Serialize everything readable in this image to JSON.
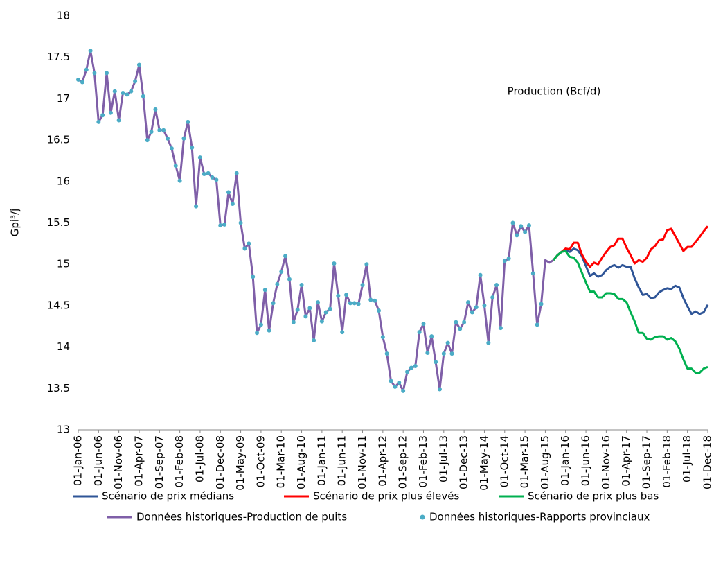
{
  "chart_data": {
    "type": "line",
    "y_label": "Gpi³/j",
    "annotation": "Production (Bcf/d)",
    "ylim": [
      13,
      18
    ],
    "yticks": [
      13,
      13.5,
      14,
      14.5,
      15,
      15.5,
      16,
      16.5,
      17,
      17.5,
      18
    ],
    "grid": false,
    "legend": "bottom",
    "categories": [
      "01-Jan-06",
      null,
      null,
      null,
      null,
      "01-Jun-06",
      null,
      null,
      null,
      null,
      "01-Nov-06",
      null,
      null,
      null,
      null,
      "01-Apr-07",
      null,
      null,
      null,
      null,
      "01-Sep-07",
      null,
      null,
      null,
      null,
      "01-Feb-08",
      null,
      null,
      null,
      null,
      "01-Jul-08",
      null,
      null,
      null,
      null,
      "01-Dec-08",
      null,
      null,
      null,
      null,
      "01-May-09",
      null,
      null,
      null,
      null,
      "01-Oct-09",
      null,
      null,
      null,
      null,
      "01-Mar-10",
      null,
      null,
      null,
      null,
      "01-Aug-10",
      null,
      null,
      null,
      null,
      "01-Jan-11",
      null,
      null,
      null,
      null,
      "01-Jun-11",
      null,
      null,
      null,
      null,
      "01-Nov-11",
      null,
      null,
      null,
      null,
      "01-Apr-12",
      null,
      null,
      null,
      null,
      "01-Sep-12",
      null,
      null,
      null,
      null,
      "01-Feb-13",
      null,
      null,
      null,
      null,
      "01-Jul-13",
      null,
      null,
      null,
      null,
      "01-Dec-13",
      null,
      null,
      null,
      null,
      "01-May-14",
      null,
      null,
      null,
      null,
      "01-Oct-14",
      null,
      null,
      null,
      null,
      "01-Mar-15",
      null,
      null,
      null,
      null,
      "01-Aug-15",
      null,
      null,
      null,
      null,
      "01-Jan-16",
      null,
      null,
      null,
      null,
      "01-Jun-16",
      null,
      null,
      null,
      null,
      "01-Nov-16",
      null,
      null,
      null,
      null,
      "01-Apr-17",
      null,
      null,
      null,
      null,
      "01-Sep-17",
      null,
      null,
      null,
      null,
      "01-Feb-18",
      null,
      null,
      null,
      null,
      "01-Jul-18",
      null,
      null,
      null,
      null,
      "01-Dec-18"
    ],
    "series": [
      {
        "name": "Scénario de prix médians",
        "color": "#2f5597",
        "mode": "line",
        "values": [
          null,
          null,
          null,
          null,
          null,
          null,
          null,
          null,
          null,
          null,
          null,
          null,
          null,
          null,
          null,
          null,
          null,
          null,
          null,
          null,
          null,
          null,
          null,
          null,
          null,
          null,
          null,
          null,
          null,
          null,
          null,
          null,
          null,
          null,
          null,
          null,
          null,
          null,
          null,
          null,
          null,
          null,
          null,
          null,
          null,
          null,
          null,
          null,
          null,
          null,
          null,
          null,
          null,
          null,
          null,
          null,
          null,
          null,
          null,
          null,
          null,
          null,
          null,
          null,
          null,
          null,
          null,
          null,
          null,
          null,
          null,
          null,
          null,
          null,
          null,
          null,
          null,
          null,
          null,
          null,
          null,
          null,
          null,
          null,
          null,
          null,
          null,
          null,
          null,
          null,
          null,
          null,
          null,
          null,
          null,
          null,
          null,
          null,
          null,
          null,
          null,
          null,
          null,
          null,
          null,
          null,
          null,
          null,
          null,
          null,
          null,
          null,
          null,
          null,
          null,
          null,
          null,
          15.05,
          15.11,
          15.15,
          15.17,
          15.15,
          15.19,
          15.17,
          15.1,
          14.98,
          14.86,
          14.89,
          14.85,
          14.87,
          14.93,
          14.97,
          14.99,
          14.96,
          14.99,
          14.97,
          14.97,
          14.83,
          14.72,
          14.63,
          14.64,
          14.59,
          14.6,
          14.66,
          14.69,
          14.71,
          14.7,
          14.74,
          14.72,
          14.59,
          14.49,
          14.4,
          14.43,
          14.4,
          14.42,
          14.51
        ]
      },
      {
        "name": "Scénario de prix plus élevés",
        "color": "#ff0000",
        "mode": "line",
        "values": [
          null,
          null,
          null,
          null,
          null,
          null,
          null,
          null,
          null,
          null,
          null,
          null,
          null,
          null,
          null,
          null,
          null,
          null,
          null,
          null,
          null,
          null,
          null,
          null,
          null,
          null,
          null,
          null,
          null,
          null,
          null,
          null,
          null,
          null,
          null,
          null,
          null,
          null,
          null,
          null,
          null,
          null,
          null,
          null,
          null,
          null,
          null,
          null,
          null,
          null,
          null,
          null,
          null,
          null,
          null,
          null,
          null,
          null,
          null,
          null,
          null,
          null,
          null,
          null,
          null,
          null,
          null,
          null,
          null,
          null,
          null,
          null,
          null,
          null,
          null,
          null,
          null,
          null,
          null,
          null,
          null,
          null,
          null,
          null,
          null,
          null,
          null,
          null,
          null,
          null,
          null,
          null,
          null,
          null,
          null,
          null,
          null,
          null,
          null,
          null,
          null,
          null,
          null,
          null,
          null,
          null,
          null,
          null,
          null,
          null,
          null,
          null,
          null,
          null,
          null,
          null,
          null,
          15.05,
          15.11,
          15.15,
          15.19,
          15.18,
          15.26,
          15.26,
          15.12,
          15.03,
          14.97,
          15.02,
          15.0,
          15.08,
          15.15,
          15.21,
          15.23,
          15.31,
          15.31,
          15.2,
          15.11,
          15.01,
          15.05,
          15.03,
          15.08,
          15.18,
          15.22,
          15.29,
          15.3,
          15.41,
          15.43,
          15.34,
          15.25,
          15.16,
          15.21,
          15.21,
          15.27,
          15.33,
          15.4,
          15.46
        ]
      },
      {
        "name": "Scénario de prix plus bas",
        "color": "#00b050",
        "mode": "line",
        "values": [
          null,
          null,
          null,
          null,
          null,
          null,
          null,
          null,
          null,
          null,
          null,
          null,
          null,
          null,
          null,
          null,
          null,
          null,
          null,
          null,
          null,
          null,
          null,
          null,
          null,
          null,
          null,
          null,
          null,
          null,
          null,
          null,
          null,
          null,
          null,
          null,
          null,
          null,
          null,
          null,
          null,
          null,
          null,
          null,
          null,
          null,
          null,
          null,
          null,
          null,
          null,
          null,
          null,
          null,
          null,
          null,
          null,
          null,
          null,
          null,
          null,
          null,
          null,
          null,
          null,
          null,
          null,
          null,
          null,
          null,
          null,
          null,
          null,
          null,
          null,
          null,
          null,
          null,
          null,
          null,
          null,
          null,
          null,
          null,
          null,
          null,
          null,
          null,
          null,
          null,
          null,
          null,
          null,
          null,
          null,
          null,
          null,
          null,
          null,
          null,
          null,
          null,
          null,
          null,
          null,
          null,
          null,
          null,
          null,
          null,
          null,
          null,
          null,
          null,
          null,
          null,
          null,
          15.05,
          15.11,
          15.15,
          15.16,
          15.09,
          15.08,
          15.02,
          14.9,
          14.78,
          14.67,
          14.67,
          14.6,
          14.6,
          14.65,
          14.65,
          14.64,
          14.58,
          14.58,
          14.54,
          14.42,
          14.31,
          14.17,
          14.17,
          14.1,
          14.09,
          14.12,
          14.13,
          14.13,
          14.09,
          14.11,
          14.07,
          13.98,
          13.85,
          13.74,
          13.74,
          13.69,
          13.69,
          13.74,
          13.76
        ]
      },
      {
        "name": "Données historiques-Production de puits",
        "color": "#7f5fa8",
        "mode": "line",
        "values": [
          17.23,
          17.2,
          17.35,
          17.58,
          17.31,
          16.72,
          16.8,
          17.31,
          16.83,
          17.09,
          16.74,
          17.07,
          17.05,
          17.09,
          17.21,
          17.41,
          17.03,
          16.5,
          16.6,
          16.87,
          16.62,
          16.62,
          16.52,
          16.4,
          16.19,
          16.01,
          16.52,
          16.72,
          16.41,
          15.7,
          16.29,
          16.09,
          16.1,
          16.05,
          16.02,
          15.47,
          15.48,
          15.87,
          15.73,
          16.1,
          15.5,
          15.19,
          15.25,
          14.85,
          14.17,
          14.27,
          14.69,
          14.2,
          14.53,
          14.76,
          14.91,
          15.1,
          14.82,
          14.3,
          14.45,
          14.75,
          14.37,
          14.47,
          14.08,
          14.54,
          14.31,
          14.42,
          14.46,
          15.01,
          14.62,
          14.18,
          14.63,
          14.53,
          14.53,
          14.52,
          14.75,
          15.0,
          14.57,
          14.56,
          14.44,
          14.12,
          13.92,
          13.59,
          13.52,
          13.57,
          13.47,
          13.7,
          13.75,
          13.77,
          14.18,
          14.28,
          13.93,
          14.13,
          13.82,
          13.49,
          13.92,
          14.05,
          13.92,
          14.3,
          14.22,
          14.3,
          14.54,
          14.42,
          14.48,
          14.87,
          14.5,
          14.05,
          14.6,
          14.75,
          14.23,
          15.04,
          15.07,
          15.5,
          15.35,
          15.46,
          15.39,
          15.47,
          14.89,
          14.27,
          14.52,
          15.05,
          15.02,
          15.05,
          null,
          null,
          null,
          null,
          null,
          null,
          null,
          null,
          null,
          null,
          null,
          null,
          null,
          null,
          null,
          null,
          null,
          null,
          null,
          null,
          null,
          null,
          null,
          null,
          null,
          null,
          null,
          null,
          null,
          null,
          null,
          null,
          null,
          null,
          null,
          null,
          null,
          null
        ]
      },
      {
        "name": "Données historiques-Rapports provinciaux",
        "color": "#4bacc6",
        "mode": "markers",
        "values": [
          17.23,
          17.2,
          17.35,
          17.58,
          17.31,
          16.72,
          16.8,
          17.31,
          16.83,
          17.09,
          16.74,
          17.07,
          17.05,
          17.09,
          17.21,
          17.41,
          17.03,
          16.5,
          16.6,
          16.87,
          16.62,
          16.62,
          16.52,
          16.4,
          16.19,
          16.01,
          16.52,
          16.72,
          16.41,
          15.7,
          16.29,
          16.09,
          16.1,
          16.05,
          16.02,
          15.47,
          15.48,
          15.87,
          15.73,
          16.1,
          15.5,
          15.19,
          15.25,
          14.85,
          14.17,
          14.27,
          14.69,
          14.2,
          14.53,
          14.76,
          14.91,
          15.1,
          14.82,
          14.3,
          14.45,
          14.75,
          14.37,
          14.47,
          14.08,
          14.54,
          14.31,
          14.42,
          14.46,
          15.01,
          14.62,
          14.18,
          14.63,
          14.53,
          14.53,
          14.52,
          14.75,
          15.0,
          14.57,
          14.56,
          14.44,
          14.12,
          13.92,
          13.59,
          13.52,
          13.57,
          13.47,
          13.7,
          13.75,
          13.77,
          14.18,
          14.28,
          13.93,
          14.13,
          13.82,
          13.49,
          13.92,
          14.05,
          13.92,
          14.3,
          14.22,
          14.3,
          14.54,
          14.42,
          14.48,
          14.87,
          14.5,
          14.05,
          14.6,
          14.75,
          14.23,
          15.04,
          15.07,
          15.5,
          15.35,
          15.46,
          15.39,
          15.47,
          14.89,
          14.27,
          14.52,
          null,
          null,
          null,
          null,
          null,
          null,
          null,
          null,
          null,
          null,
          null,
          null,
          null,
          null,
          null,
          null,
          null,
          null,
          null,
          null,
          null,
          null,
          null,
          null,
          null,
          null,
          null,
          null,
          null,
          null,
          null,
          null,
          null,
          null,
          null,
          null,
          null,
          null,
          null,
          null,
          null
        ]
      }
    ]
  }
}
